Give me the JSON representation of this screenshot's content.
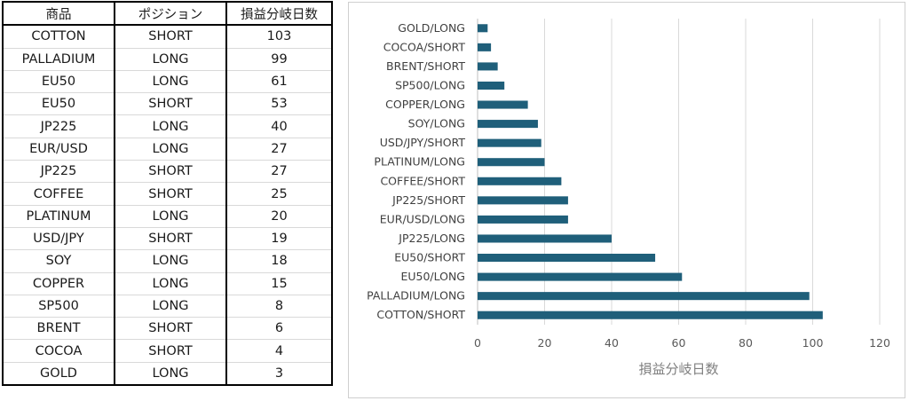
{
  "table": {
    "headers": [
      "商品",
      "ポジション",
      "損益分岐日数"
    ],
    "rows": [
      [
        "COTTON",
        "SHORT",
        "103"
      ],
      [
        "PALLADIUM",
        "LONG",
        "99"
      ],
      [
        "EU50",
        "LONG",
        "61"
      ],
      [
        "EU50",
        "SHORT",
        "53"
      ],
      [
        "JP225",
        "LONG",
        "40"
      ],
      [
        "EUR/USD",
        "LONG",
        "27"
      ],
      [
        "JP225",
        "SHORT",
        "27"
      ],
      [
        "COFFEE",
        "SHORT",
        "25"
      ],
      [
        "PLATINUM",
        "LONG",
        "20"
      ],
      [
        "USD/JPY",
        "SHORT",
        "19"
      ],
      [
        "SOY",
        "LONG",
        "18"
      ],
      [
        "COPPER",
        "LONG",
        "15"
      ],
      [
        "SP500",
        "LONG",
        "8"
      ],
      [
        "BRENT",
        "SHORT",
        "6"
      ],
      [
        "COCOA",
        "SHORT",
        "4"
      ],
      [
        "GOLD",
        "LONG",
        "3"
      ]
    ]
  },
  "chart_data": {
    "type": "bar",
    "orientation": "horizontal",
    "categories": [
      "COTTON/SHORT",
      "PALLADIUM/LONG",
      "EU50/LONG",
      "EU50/SHORT",
      "JP225/LONG",
      "EUR/USD/LONG",
      "JP225/SHORT",
      "COFFEE/SHORT",
      "PLATINUM/LONG",
      "USD/JPY/SHORT",
      "SOY/LONG",
      "COPPER/LONG",
      "SP500/LONG",
      "BRENT/SHORT",
      "COCOA/SHORT",
      "GOLD/LONG"
    ],
    "values": [
      103,
      99,
      61,
      53,
      40,
      27,
      27,
      25,
      20,
      19,
      18,
      15,
      8,
      6,
      4,
      3
    ],
    "xlabel": "損益分岐日数",
    "ylabel": "",
    "xlim": [
      0,
      120
    ],
    "xticks": [
      0,
      20,
      40,
      60,
      80,
      100,
      120
    ],
    "grid": true,
    "legend": "none",
    "bar_color": "#1f5f7a",
    "grid_color": "#d9d9d9"
  }
}
